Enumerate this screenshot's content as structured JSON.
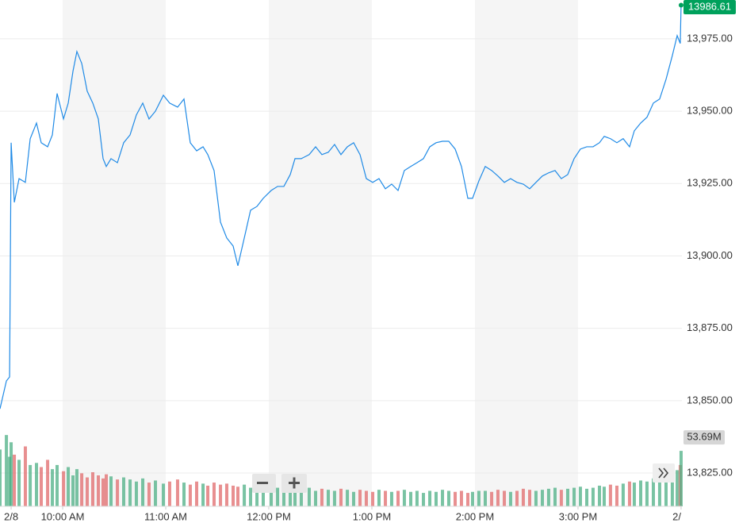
{
  "chart_data": {
    "type": "line",
    "color": "#1f8ae6",
    "x": [
      9.392,
      9.454,
      9.485,
      9.5,
      9.531,
      9.577,
      9.638,
      9.685,
      9.746,
      9.792,
      9.854,
      9.9,
      9.946,
      10.008,
      10.054,
      10.1,
      10.138,
      10.185,
      10.238,
      10.292,
      10.346,
      10.392,
      10.423,
      10.469,
      10.531,
      10.592,
      10.654,
      10.715,
      10.777,
      10.838,
      10.9,
      10.977,
      11.038,
      11.115,
      11.177,
      11.238,
      11.3,
      11.362,
      11.408,
      11.469,
      11.531,
      11.592,
      11.654,
      11.7,
      11.762,
      11.823,
      11.885,
      11.946,
      12.023,
      12.085,
      12.146,
      12.208,
      12.254,
      12.315,
      12.392,
      12.454,
      12.515,
      12.577,
      12.638,
      12.7,
      12.762,
      12.823,
      12.885,
      12.946,
      13.008,
      13.069,
      13.131,
      13.192,
      13.254,
      13.315,
      13.377,
      13.438,
      13.5,
      13.562,
      13.623,
      13.685,
      13.746,
      13.808,
      13.869,
      13.931,
      13.977,
      14.038,
      14.1,
      14.162,
      14.223,
      14.285,
      14.346,
      14.408,
      14.469,
      14.531,
      14.592,
      14.654,
      14.715,
      14.777,
      14.838,
      14.9,
      14.962,
      15.023,
      15.085,
      15.146,
      15.208,
      15.254,
      15.315,
      15.377,
      15.438,
      15.5,
      15.546,
      15.608,
      15.669,
      15.731,
      15.792,
      15.854,
      15.915,
      15.962,
      15.992,
      16.0
    ],
    "values": [
      13847.2,
      13856.8,
      13858.2,
      13939.1,
      13918.5,
      13926.7,
      13925.4,
      13940.5,
      13945.9,
      13939.1,
      13937.7,
      13941.8,
      13956.1,
      13947.3,
      13952.8,
      13963.8,
      13970.6,
      13966.5,
      13956.9,
      13952.8,
      13947.3,
      13933.6,
      13930.9,
      13933.6,
      13932.2,
      13939.1,
      13941.8,
      13948.7,
      13952.8,
      13947.3,
      13950.0,
      13955.5,
      13952.8,
      13951.4,
      13954.2,
      13939.1,
      13936.3,
      13937.7,
      13935.0,
      13929.5,
      13911.7,
      13906.2,
      13903.4,
      13896.6,
      13906.2,
      13915.8,
      13917.1,
      13919.9,
      13922.6,
      13924.0,
      13924.0,
      13928.1,
      13933.6,
      13933.6,
      13935.0,
      13937.7,
      13935.0,
      13935.8,
      13938.5,
      13935.0,
      13937.7,
      13939.1,
      13935.0,
      13926.7,
      13925.4,
      13926.7,
      13923.2,
      13924.8,
      13922.6,
      13929.5,
      13930.9,
      13932.2,
      13933.6,
      13937.7,
      13939.1,
      13939.6,
      13939.6,
      13936.9,
      13930.9,
      13919.9,
      13919.9,
      13925.9,
      13930.9,
      13929.5,
      13927.6,
      13925.4,
      13926.7,
      13925.4,
      13924.8,
      13923.2,
      13925.4,
      13927.6,
      13928.7,
      13929.5,
      13926.7,
      13928.1,
      13933.6,
      13936.9,
      13937.7,
      13937.7,
      13939.1,
      13941.3,
      13940.5,
      13939.1,
      13940.5,
      13937.7,
      13943.2,
      13945.9,
      13947.9,
      13952.8,
      13954.2,
      13961.0,
      13969.2,
      13976.1,
      13973.4,
      13986.61
    ],
    "xlim": [
      9.392,
      16.008
    ],
    "ylim": [
      13813.5,
      13988.4
    ],
    "xticks": [
      {
        "value": 9.5,
        "label": "2/8"
      },
      {
        "value": 10,
        "label": "10:00 AM"
      },
      {
        "value": 11,
        "label": "11:00 AM"
      },
      {
        "value": 12,
        "label": "12:00 PM"
      },
      {
        "value": 13,
        "label": "1:00 PM"
      },
      {
        "value": 14,
        "label": "2:00 PM"
      },
      {
        "value": 15,
        "label": "3:00 PM"
      },
      {
        "value": 16,
        "label": "2/"
      }
    ],
    "yticks": [
      {
        "value": 13825,
        "label": "13,825.00"
      },
      {
        "value": 13850,
        "label": "13,850.00"
      },
      {
        "value": 13875,
        "label": "13,875.00"
      },
      {
        "value": 13900,
        "label": "13,900.00"
      },
      {
        "value": 13925,
        "label": "13,925.00"
      },
      {
        "value": 13950,
        "label": "13,950.00"
      },
      {
        "value": 13975,
        "label": "13,975.00"
      }
    ],
    "grid": true,
    "volume": {
      "up_color": "#4caf84",
      "down_color": "#e0696b",
      "ylim": [
        0,
        490
      ],
      "last_label": "53.69M",
      "values": [
        55,
        69,
        48,
        62,
        50,
        45,
        58,
        40,
        42,
        38,
        45,
        36,
        40,
        34,
        38,
        30,
        36,
        32,
        28,
        33,
        30,
        27,
        31,
        29,
        26,
        28,
        26,
        24,
        27,
        23,
        25,
        22,
        24,
        26,
        23,
        21,
        24,
        22,
        20,
        23,
        21,
        22,
        20,
        19,
        21,
        18,
        20,
        19,
        17,
        18,
        19,
        20,
        17,
        16,
        18,
        15,
        17,
        16,
        15,
        17,
        16,
        14,
        16,
        15,
        14,
        16,
        15,
        14,
        15,
        16,
        14,
        15,
        13,
        15,
        14,
        16,
        15,
        14,
        15,
        13,
        14,
        15,
        15,
        14,
        16,
        15,
        14,
        15,
        17,
        16,
        15,
        16,
        17,
        18,
        16,
        17,
        18,
        19,
        17,
        18,
        20,
        19,
        21,
        20,
        22,
        24,
        23,
        25,
        24,
        27,
        26,
        30,
        32,
        35,
        40,
        53.69
      ]
    }
  }
}
